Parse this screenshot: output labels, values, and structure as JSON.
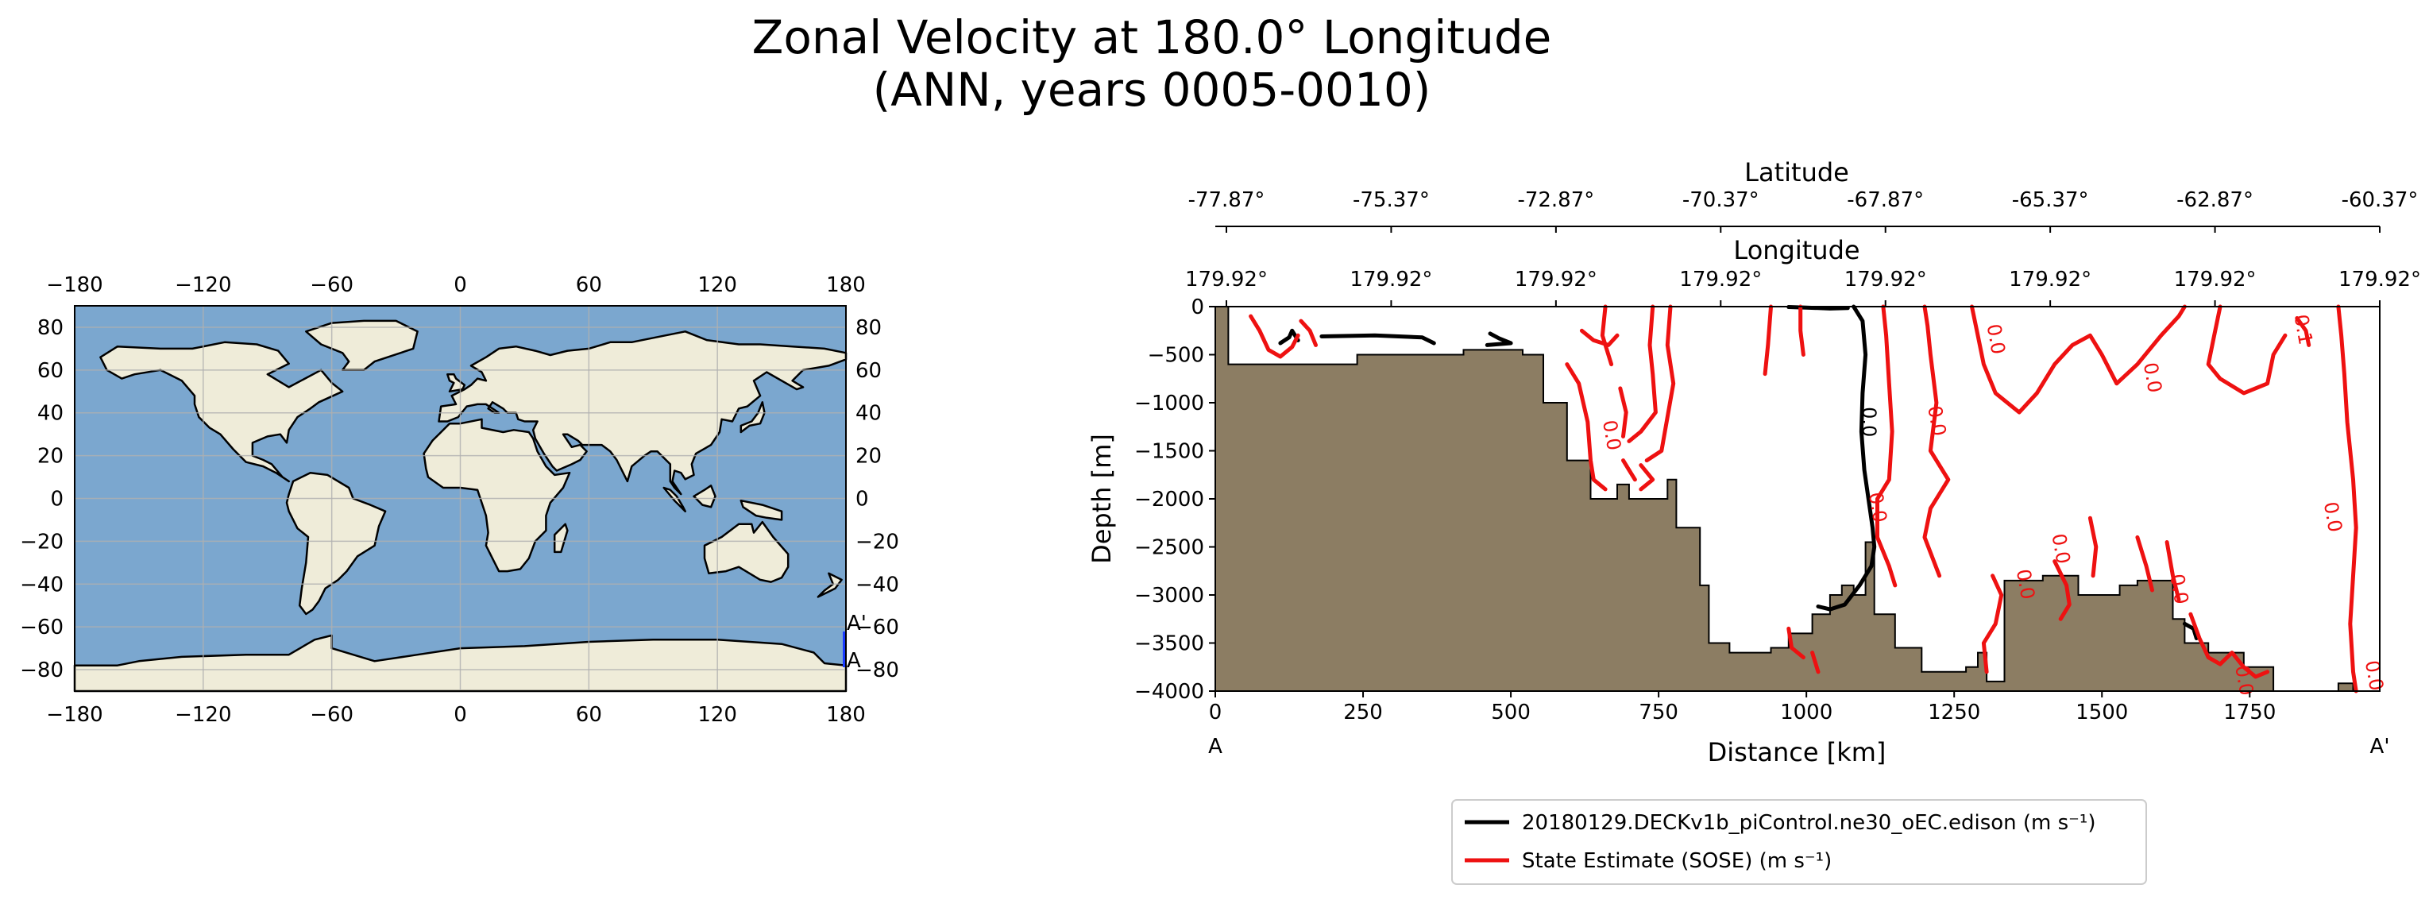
{
  "title": {
    "line1": "Zonal Velocity at 180.0° Longitude",
    "line2": "(ANN, years 0005-0010)"
  },
  "colors": {
    "ocean": "#7ba7cf",
    "land": "#efecd9",
    "bathymetry": "#8c7d63",
    "model_line": "#000000",
    "obs_line": "#ee1111",
    "transect": "#1a3bff",
    "grid": "#b0b0b0"
  },
  "map": {
    "x_ticks": [
      "−180",
      "−120",
      "−60",
      "0",
      "60",
      "120",
      "180"
    ],
    "y_ticks": [
      "80",
      "60",
      "40",
      "20",
      "0",
      "−20",
      "−40",
      "−60",
      "−80"
    ],
    "point_start": "A",
    "point_end": "A'"
  },
  "chart_data": {
    "type": "line",
    "title": "Zonal Velocity at 180.0° Longitude (ANN, years 0005-0010)",
    "xlabel": "Distance [km]",
    "ylabel": "Depth [m]",
    "xlim": [
      0,
      1970
    ],
    "ylim": [
      -4000,
      0
    ],
    "x_ticks": [
      "0",
      "250",
      "500",
      "750",
      "1000",
      "1250",
      "1500",
      "1750"
    ],
    "y_ticks": [
      "0",
      "−500",
      "−1000",
      "−1500",
      "−2000",
      "−2500",
      "−3000",
      "−3500",
      "−4000"
    ],
    "x_end_labels": [
      "A",
      "A'"
    ],
    "top_axis_lat_label": "Latitude",
    "top_axis_lat_ticks": [
      "-77.87°",
      "-75.37°",
      "-72.87°",
      "-70.37°",
      "-67.87°",
      "-65.37°",
      "-62.87°",
      "-60.37°"
    ],
    "top_axis_lon_label": "Longitude",
    "top_axis_lon_ticks": [
      "179.92°",
      "179.92°",
      "179.92°",
      "179.92°",
      "179.92°",
      "179.92°",
      "179.92°",
      "179.92°"
    ],
    "bathymetry": [
      [
        0,
        -4000
      ],
      [
        0,
        0
      ],
      [
        22,
        0
      ],
      [
        22,
        -600
      ],
      [
        240,
        -600
      ],
      [
        240,
        -500
      ],
      [
        420,
        -500
      ],
      [
        420,
        -450
      ],
      [
        520,
        -450
      ],
      [
        520,
        -500
      ],
      [
        555,
        -500
      ],
      [
        555,
        -1000
      ],
      [
        595,
        -1000
      ],
      [
        595,
        -1600
      ],
      [
        635,
        -1600
      ],
      [
        635,
        -2000
      ],
      [
        680,
        -2000
      ],
      [
        680,
        -1850
      ],
      [
        700,
        -1850
      ],
      [
        700,
        -2000
      ],
      [
        745,
        -2000
      ],
      [
        745,
        -2000
      ],
      [
        765,
        -2000
      ],
      [
        765,
        -1800
      ],
      [
        780,
        -1800
      ],
      [
        780,
        -2300
      ],
      [
        820,
        -2300
      ],
      [
        820,
        -2900
      ],
      [
        835,
        -2900
      ],
      [
        835,
        -3500
      ],
      [
        870,
        -3500
      ],
      [
        870,
        -3600
      ],
      [
        940,
        -3600
      ],
      [
        940,
        -3550
      ],
      [
        970,
        -3550
      ],
      [
        970,
        -3400
      ],
      [
        1010,
        -3400
      ],
      [
        1010,
        -3200
      ],
      [
        1040,
        -3200
      ],
      [
        1040,
        -3000
      ],
      [
        1060,
        -3000
      ],
      [
        1060,
        -2900
      ],
      [
        1080,
        -2900
      ],
      [
        1080,
        -3000
      ],
      [
        1100,
        -3000
      ],
      [
        1100,
        -2450
      ],
      [
        1115,
        -2450
      ],
      [
        1115,
        -3200
      ],
      [
        1150,
        -3200
      ],
      [
        1150,
        -3550
      ],
      [
        1195,
        -3550
      ],
      [
        1195,
        -3800
      ],
      [
        1270,
        -3800
      ],
      [
        1270,
        -3750
      ],
      [
        1290,
        -3750
      ],
      [
        1290,
        -3600
      ],
      [
        1305,
        -3600
      ],
      [
        1305,
        -3900
      ],
      [
        1335,
        -3900
      ],
      [
        1335,
        -2850
      ],
      [
        1400,
        -2850
      ],
      [
        1400,
        -2800
      ],
      [
        1460,
        -2800
      ],
      [
        1460,
        -3000
      ],
      [
        1530,
        -3000
      ],
      [
        1530,
        -2900
      ],
      [
        1560,
        -2900
      ],
      [
        1560,
        -2850
      ],
      [
        1620,
        -2850
      ],
      [
        1620,
        -3250
      ],
      [
        1640,
        -3250
      ],
      [
        1640,
        -3500
      ],
      [
        1680,
        -3500
      ],
      [
        1680,
        -3600
      ],
      [
        1740,
        -3600
      ],
      [
        1740,
        -3750
      ],
      [
        1790,
        -3750
      ],
      [
        1790,
        -4000
      ],
      [
        1900,
        -4000
      ],
      [
        1900,
        -3920
      ],
      [
        1925,
        -3920
      ],
      [
        1925,
        -4000
      ],
      [
        1970,
        -4000
      ]
    ],
    "series": [
      {
        "name": "20180129.DECKv1b_piControl.ne30_oEC.edison (m s⁻¹)",
        "color": "#000000",
        "contour_label": "0.0",
        "segments": [
          [
            [
              970,
              -4
            ],
            [
              1000,
              -10
            ],
            [
              1040,
              -20
            ],
            [
              1070,
              -15
            ]
          ],
          [
            [
              1080,
              0
            ],
            [
              1095,
              -150
            ],
            [
              1100,
              -500
            ],
            [
              1095,
              -900
            ],
            [
              1093,
              -1300
            ],
            [
              1098,
              -1700
            ],
            [
              1105,
              -2000
            ],
            [
              1112,
              -2300
            ],
            [
              1115,
              -2500
            ],
            [
              1110,
              -2700
            ],
            [
              1090,
              -2900
            ],
            [
              1065,
              -3100
            ],
            [
              1040,
              -3150
            ],
            [
              1020,
              -3120
            ]
          ],
          [
            [
              110,
              -380
            ],
            [
              125,
              -320
            ],
            [
              130,
              -250
            ],
            [
              140,
              -350
            ]
          ],
          [
            [
              180,
              -310
            ],
            [
              270,
              -300
            ],
            [
              350,
              -320
            ],
            [
              370,
              -380
            ]
          ],
          [
            [
              465,
              -280
            ],
            [
              480,
              -330
            ],
            [
              500,
              -380
            ],
            [
              460,
              -400
            ]
          ],
          [
            [
              1640,
              -3300
            ],
            [
              1655,
              -3350
            ],
            [
              1660,
              -3450
            ]
          ]
        ]
      },
      {
        "name": "State Estimate (SOSE) (m s⁻¹)",
        "color": "#ee1111",
        "contour_label": "0.0",
        "segments": [
          [
            [
              60,
              -100
            ],
            [
              75,
              -250
            ],
            [
              90,
              -450
            ],
            [
              110,
              -520
            ],
            [
              130,
              -420
            ],
            [
              140,
              -300
            ]
          ],
          [
            [
              145,
              -150
            ],
            [
              160,
              -250
            ],
            [
              170,
              -400
            ]
          ],
          [
            [
              595,
              -600
            ],
            [
              615,
              -800
            ],
            [
              630,
              -1200
            ],
            [
              635,
              -1600
            ],
            [
              640,
              -1800
            ],
            [
              660,
              -1900
            ]
          ],
          [
            [
              620,
              -250
            ],
            [
              640,
              -350
            ],
            [
              665,
              -400
            ],
            [
              680,
              -300
            ]
          ],
          [
            [
              685,
              -850
            ],
            [
              695,
              -1100
            ],
            [
              690,
              -1350
            ]
          ],
          [
            [
              690,
              -1600
            ],
            [
              700,
              -1700
            ],
            [
              710,
              -1800
            ]
          ],
          [
            [
              720,
              -1900
            ],
            [
              740,
              -1800
            ],
            [
              720,
              -1650
            ]
          ],
          [
            [
              660,
              0
            ],
            [
              655,
              -300
            ],
            [
              670,
              -600
            ]
          ],
          [
            [
              740,
              0
            ],
            [
              735,
              -400
            ],
            [
              740,
              -700
            ],
            [
              745,
              -1100
            ],
            [
              720,
              -1300
            ],
            [
              700,
              -1400
            ]
          ],
          [
            [
              770,
              0
            ],
            [
              765,
              -400
            ],
            [
              775,
              -800
            ],
            [
              755,
              -1500
            ],
            [
              730,
              -1600
            ]
          ],
          [
            [
              940,
              0
            ],
            [
              935,
              -400
            ],
            [
              930,
              -700
            ]
          ],
          [
            [
              990,
              0
            ],
            [
              990,
              -250
            ],
            [
              995,
              -500
            ]
          ],
          [
            [
              1130,
              0
            ],
            [
              1135,
              -300
            ],
            [
              1140,
              -800
            ],
            [
              1145,
              -1300
            ],
            [
              1140,
              -1800
            ],
            [
              1120,
              -2000
            ],
            [
              1120,
              -2400
            ],
            [
              1140,
              -2700
            ],
            [
              1150,
              -2900
            ]
          ],
          [
            [
              1200,
              0
            ],
            [
              1205,
              -200
            ],
            [
              1210,
              -500
            ],
            [
              1220,
              -1000
            ],
            [
              1210,
              -1500
            ],
            [
              1240,
              -1800
            ],
            [
              1210,
              -2100
            ],
            [
              1200,
              -2400
            ],
            [
              1225,
              -2800
            ]
          ],
          [
            [
              1280,
              0
            ],
            [
              1290,
              -300
            ],
            [
              1300,
              -600
            ],
            [
              1320,
              -900
            ],
            [
              1360,
              -1100
            ],
            [
              1390,
              -900
            ],
            [
              1420,
              -600
            ],
            [
              1450,
              -400
            ],
            [
              1480,
              -300
            ],
            [
              1500,
              -500
            ],
            [
              1525,
              -800
            ],
            [
              1560,
              -600
            ],
            [
              1600,
              -300
            ],
            [
              1630,
              -100
            ],
            [
              1640,
              0
            ]
          ],
          [
            [
              1700,
              0
            ],
            [
              1690,
              -300
            ],
            [
              1680,
              -600
            ],
            [
              1700,
              -750
            ],
            [
              1740,
              -900
            ],
            [
              1780,
              -800
            ],
            [
              1790,
              -500
            ],
            [
              1810,
              -300
            ]
          ],
          [
            [
              1830,
              -120
            ],
            [
              1845,
              -250
            ],
            [
              1850,
              -400
            ]
          ],
          [
            [
              1900,
              0
            ],
            [
              1905,
              -300
            ],
            [
              1910,
              -700
            ],
            [
              1915,
              -1200
            ],
            [
              1925,
              -1800
            ],
            [
              1930,
              -2300
            ],
            [
              1925,
              -2800
            ],
            [
              1920,
              -3300
            ],
            [
              1925,
              -3800
            ],
            [
              1930,
              -4000
            ]
          ],
          [
            [
              1315,
              -2800
            ],
            [
              1330,
              -3000
            ],
            [
              1320,
              -3300
            ],
            [
              1300,
              -3500
            ],
            [
              1305,
              -3800
            ]
          ],
          [
            [
              1420,
              -2650
            ],
            [
              1440,
              -2900
            ],
            [
              1445,
              -3100
            ],
            [
              1430,
              -3250
            ]
          ],
          [
            [
              1480,
              -2200
            ],
            [
              1490,
              -2500
            ],
            [
              1485,
              -2800
            ]
          ],
          [
            [
              1560,
              -2400
            ],
            [
              1575,
              -2700
            ],
            [
              1585,
              -2950
            ]
          ],
          [
            [
              1610,
              -2450
            ],
            [
              1620,
              -2800
            ],
            [
              1630,
              -3050
            ]
          ],
          [
            [
              1650,
              -3200
            ],
            [
              1665,
              -3450
            ],
            [
              1680,
              -3650
            ],
            [
              1700,
              -3720
            ],
            [
              1720,
              -3600
            ],
            [
              1740,
              -3750
            ],
            [
              1760,
              -3850
            ],
            [
              1780,
              -3800
            ]
          ],
          [
            [
              970,
              -3350
            ],
            [
              975,
              -3550
            ],
            [
              995,
              -3650
            ]
          ],
          [
            [
              1010,
              -3600
            ],
            [
              1020,
              -3800
            ]
          ]
        ]
      }
    ],
    "red_labels": [
      {
        "x": 1310,
        "y": -350,
        "text": "0.0"
      },
      {
        "x": 1575,
        "y": -750,
        "text": "0.0"
      },
      {
        "x": 1210,
        "y": -1200,
        "text": "0.0"
      },
      {
        "x": 1110,
        "y": -2100,
        "text": "0.0"
      },
      {
        "x": 1830,
        "y": -250,
        "text": "0.1"
      },
      {
        "x": 1880,
        "y": -2200,
        "text": "0.0"
      },
      {
        "x": 1360,
        "y": -2900,
        "text": "0.0"
      },
      {
        "x": 1420,
        "y": -2530,
        "text": "0.0"
      },
      {
        "x": 1620,
        "y": -2950,
        "text": "0.0"
      },
      {
        "x": 1730,
        "y": -3900,
        "text": "0.0"
      },
      {
        "x": 660,
        "y": -1350,
        "text": "0.0"
      },
      {
        "x": 1950,
        "y": -3850,
        "text": "0.0"
      }
    ],
    "black_labels": [
      {
        "x": 1095,
        "y": -1200,
        "text": "0.0"
      }
    ]
  }
}
